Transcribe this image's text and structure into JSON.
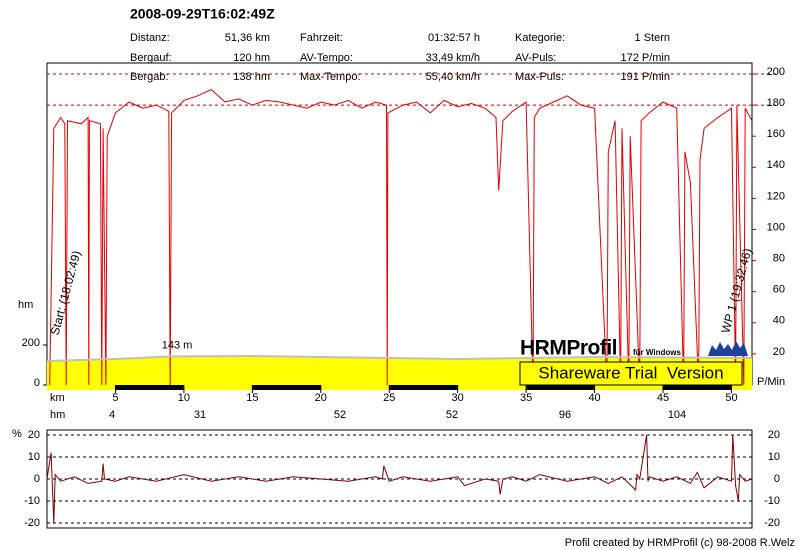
{
  "header": {
    "title": "2008-09-29T16:02:49Z",
    "stats": [
      {
        "label": "Distanz:",
        "value": "51,36 km"
      },
      {
        "label": "Fahrzeit:",
        "value": "01:32:57 h"
      },
      {
        "label": "Kategorie:",
        "value": "1 Stern"
      },
      {
        "label": "Bergauf:",
        "value": "120 hm"
      },
      {
        "label": "AV-Tempo:",
        "value": "33,49 km/h"
      },
      {
        "label": "AV-Puls:",
        "value": "172 P/min"
      },
      {
        "label": "Bergab:",
        "value": "138 hm"
      },
      {
        "label": "Max-Tempo:",
        "value": "55,40 km/h"
      },
      {
        "label": "Max-Puls:",
        "value": "191 P/min"
      }
    ]
  },
  "chart_data": [
    {
      "type": "line",
      "xlabel": "km",
      "ylabel": "hm",
      "y2label": "P/Min",
      "xlim": [
        0,
        51.5
      ],
      "xticks": [
        5,
        10,
        15,
        20,
        25,
        30,
        35,
        40,
        45,
        50
      ],
      "ylim": [
        0,
        1555
      ],
      "yticks": [
        0,
        200
      ],
      "y2lim": [
        0,
        200
      ],
      "y2ticks": [
        20,
        40,
        60,
        80,
        100,
        120,
        140,
        160,
        180,
        200
      ],
      "y2_reference_lines": [
        180,
        200
      ],
      "series": [
        {
          "axis": "y2",
          "color": "#e00000",
          "x": [
            0.2,
            0.5,
            1.0,
            1.3,
            1.4,
            1.5,
            2.5,
            3.0,
            3.05,
            3.1,
            3.9,
            4.0,
            4.1,
            4.3,
            4.4,
            5,
            6,
            7,
            8,
            8.9,
            9.0,
            9.1,
            10,
            11,
            12,
            13,
            14,
            15,
            16,
            17,
            18,
            19,
            20,
            21,
            22,
            23,
            24,
            24.8,
            24.85,
            24.9,
            26,
            27,
            28,
            29,
            30,
            31,
            32,
            32.8,
            33.0,
            33.3,
            34,
            35,
            35.5,
            35.6,
            36,
            37,
            38,
            39,
            40,
            40.9,
            41.0,
            41.5,
            41.9,
            42.0,
            42.5,
            42.6,
            43.3,
            43.4,
            44,
            45,
            46,
            46.5,
            46.6,
            47,
            47.6,
            47.7,
            48,
            49,
            50,
            50.3,
            50.4,
            50.9,
            51,
            51.5
          ],
          "values": [
            0,
            165,
            172,
            168,
            0,
            170,
            168,
            172,
            0,
            170,
            168,
            0,
            165,
            0,
            160,
            175,
            182,
            178,
            180,
            176,
            0,
            175,
            183,
            186,
            190,
            182,
            184,
            180,
            183,
            182,
            180,
            178,
            182,
            180,
            183,
            178,
            182,
            180,
            0,
            175,
            180,
            182,
            175,
            183,
            179,
            181,
            178,
            172,
            125,
            170,
            176,
            182,
            0,
            172,
            178,
            182,
            186,
            180,
            178,
            0,
            150,
            170,
            0,
            165,
            0,
            160,
            0,
            170,
            175,
            182,
            178,
            0,
            150,
            130,
            0,
            145,
            165,
            172,
            178,
            0,
            180,
            0,
            178,
            170
          ]
        },
        {
          "axis": "y",
          "color": "#c0c0c0",
          "fill": "#ffff00",
          "x": [
            0,
            5,
            9,
            15,
            20,
            25,
            30,
            35,
            40,
            45,
            51.5
          ],
          "values": [
            120,
            130,
            143,
            145,
            140,
            135,
            130,
            135,
            140,
            138,
            135
          ]
        }
      ],
      "annotations": [
        {
          "text": "Start: (18:02:49)",
          "x": 0.6
        },
        {
          "text": "WP 1 (19:32:46)",
          "x": 49.6
        },
        {
          "text": "143 m",
          "x": 9.5,
          "y": 143
        }
      ],
      "climb_row": {
        "label": "hm",
        "values": [
          4,
          31,
          52,
          52,
          96,
          104
        ]
      },
      "watermark": {
        "logo": "HRMProfil",
        "subtitle": "für Windows",
        "banner": "Shareware Trial  Version"
      }
    },
    {
      "type": "line",
      "ylabel": "%",
      "xlim": [
        0,
        51.5
      ],
      "ylim": [
        -20,
        20
      ],
      "yticks": [
        -20,
        -10,
        0,
        10,
        20
      ],
      "series": [
        {
          "color": "#800000",
          "x": [
            0,
            0.3,
            0.5,
            0.6,
            1,
            2,
            3,
            4,
            4.1,
            4.2,
            5,
            6,
            8,
            10,
            12,
            14,
            16,
            18,
            20,
            22,
            24,
            24.5,
            24.6,
            25,
            26,
            28,
            30,
            30.5,
            32,
            33,
            33.1,
            33.3,
            34,
            35,
            36,
            38,
            40,
            41,
            42,
            43,
            43.1,
            43.3,
            43.8,
            43.9,
            44,
            45,
            46,
            47,
            47.5,
            48,
            49,
            50,
            50.1,
            50.3,
            50.5,
            50.6,
            51,
            51.5
          ],
          "values": [
            0,
            12,
            -20,
            2,
            -1,
            1,
            -2,
            -1,
            7,
            0,
            -1,
            1,
            -1,
            2,
            -1,
            1,
            -1,
            1,
            0,
            -1,
            1,
            0,
            6,
            -1,
            1,
            -1,
            1,
            -3,
            0,
            -1,
            -7,
            0,
            1,
            -1,
            2,
            -1,
            1,
            -2,
            1,
            -5,
            2,
            0,
            20,
            -1,
            1,
            -1,
            1,
            -2,
            3,
            -4,
            1,
            -1,
            20,
            -3,
            -10,
            2,
            -1,
            0
          ]
        }
      ]
    }
  ],
  "footer": "Profil created by HRMProfil (c) 98-2008 R.Welz"
}
